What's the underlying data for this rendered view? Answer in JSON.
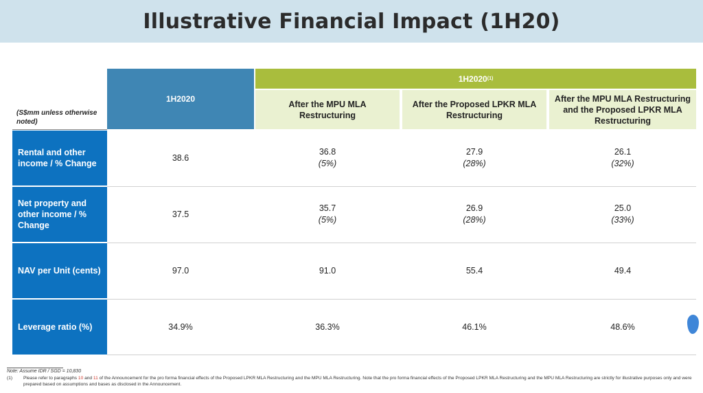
{
  "title": "Illustrative Financial Impact (1H20)",
  "units_label": "(S$mm unless otherwise noted)",
  "header": {
    "base_column": "1H2020",
    "group_label": "1H2020",
    "group_sup": "(1)",
    "sub_columns": [
      "After the MPU MLA Restructuring",
      "After the Proposed LPKR MLA Restructuring",
      "After the MPU MLA Restructuring and the Proposed LPKR MLA Restructuring"
    ]
  },
  "rows": [
    {
      "label": "Rental and other income / % Change",
      "base": "38.6",
      "values": [
        {
          "value": "36.8",
          "change": "(5%)"
        },
        {
          "value": "27.9",
          "change": "(28%)"
        },
        {
          "value": "26.1",
          "change": "(32%)"
        }
      ]
    },
    {
      "label": "Net property and other income / % Change",
      "base": "37.5",
      "values": [
        {
          "value": "35.7",
          "change": "(5%)"
        },
        {
          "value": "26.9",
          "change": "(28%)"
        },
        {
          "value": "25.0",
          "change": "(33%)"
        }
      ]
    },
    {
      "label": "NAV per Unit (cents)",
      "base": "97.0",
      "values": [
        {
          "value": "91.0",
          "change": ""
        },
        {
          "value": "55.4",
          "change": ""
        },
        {
          "value": "49.4",
          "change": ""
        }
      ]
    },
    {
      "label": "Leverage ratio (%)",
      "base": "34.9%",
      "values": [
        {
          "value": "36.3%",
          "change": ""
        },
        {
          "value": "46.1%",
          "change": ""
        },
        {
          "value": "48.6%",
          "change": ""
        }
      ]
    }
  ],
  "note": "Note: Assume IDR / SGD = 10,830",
  "footnote": {
    "number": "(1)",
    "text_before": "Please refer to paragraphs ",
    "ref1": "10",
    "text_and": " and ",
    "ref2": "11",
    "text_after": " of the Announcement for the pro forma financial effects of the Proposed LPKR MLA Restructuring and the MPU MLA Restructuring. Note that the pro forma financial effects of the Proposed LPKR MLA Restructuring and the MPU MLA Restructuring are strictly for illustrative purposes only and were prepared based on assumptions and bases as disclosed in the Announcement."
  },
  "colors": {
    "title_bg": "#cfe2ec",
    "base_header": "#3f86b4",
    "group_header": "#a9bd3d",
    "sub_header": "#eaf1d1",
    "row_label": "#0d72c0",
    "footnote_ref": "#d03b2f"
  }
}
